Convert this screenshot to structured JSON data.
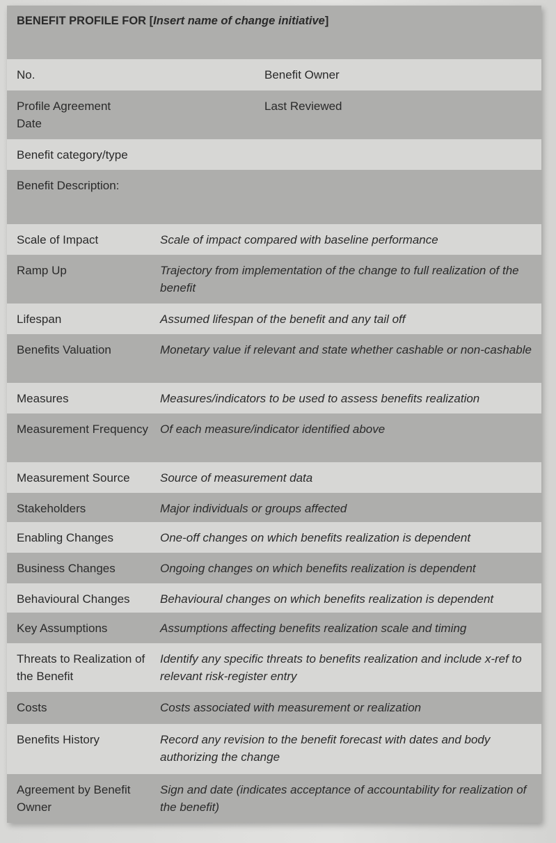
{
  "header": {
    "prefix": "BENEFIT PROFILE FOR [",
    "placeholder": "Insert name of change initiative",
    "suffix": "]"
  },
  "top_rows": [
    {
      "left": "No.",
      "right": "Benefit Owner"
    },
    {
      "left": "Profile Agreement Date",
      "right": "Last Reviewed"
    },
    {
      "left": "Benefit category/type",
      "right": ""
    },
    {
      "left": "Benefit Description:",
      "right": ""
    }
  ],
  "rows": [
    {
      "label": "Scale of Impact",
      "description": "Scale of impact compared with baseline performance"
    },
    {
      "label": "Ramp Up",
      "description": "Trajectory from implementation of the change to full realization of the benefit"
    },
    {
      "label": "Lifespan",
      "description": "Assumed lifespan of the benefit and any tail off"
    },
    {
      "label": "Benefits Valuation",
      "description": "Monetary value if relevant and state whether cashable or non-cashable"
    },
    {
      "label": "Measures",
      "description": "Measures/indicators to be used to assess benefits realization"
    },
    {
      "label": "Measurement Frequency",
      "description": "Of each measure/indicator identified above"
    },
    {
      "label": "Measurement Source",
      "description": "Source of measurement data"
    },
    {
      "label": "Stakeholders",
      "description": "Major individuals or groups affected"
    },
    {
      "label": "Enabling Changes",
      "description": "One-off changes on which benefits realization is dependent"
    },
    {
      "label": "Business Changes",
      "description": "Ongoing changes on which benefits realization is dependent"
    },
    {
      "label": "Behavioural Changes",
      "description": "Behavioural changes on which benefits realization is dependent"
    },
    {
      "label": "Key Assumptions",
      "description": "Assumptions affecting benefits realization scale and timing"
    },
    {
      "label": "Threats to Realization of the Benefit",
      "description": "Identify any specific threats to benefits realization and include x-ref to relevant risk-register entry"
    },
    {
      "label": "Costs",
      "description": "Costs associated with measurement or realization"
    },
    {
      "label": "Benefits History",
      "description": "Record any revision to the benefit forecast with dates and body authorizing the change"
    },
    {
      "label": "Agreement by Benefit Owner",
      "description": "Sign and date (indicates acceptance of accountability for realization of the benefit)"
    }
  ]
}
